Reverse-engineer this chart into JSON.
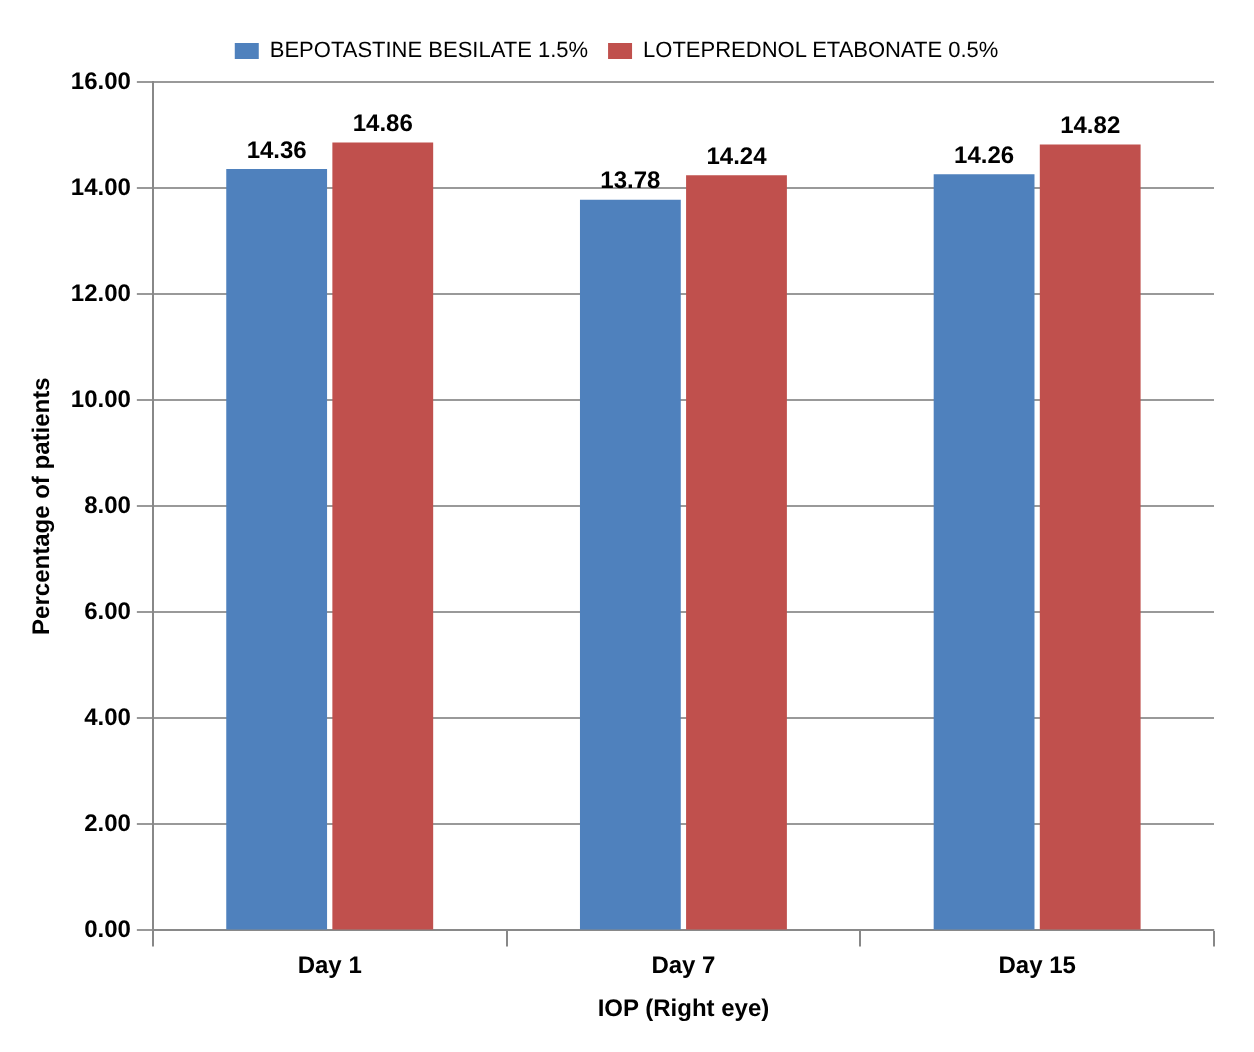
{
  "chart_data": {
    "type": "bar",
    "xlabel": "IOP (Right eye)",
    "ylabel": "Percentage of patients",
    "categories": [
      "Day 1",
      "Day 7",
      "Day 15"
    ],
    "series": [
      {
        "name": "BEPOTASTINE BESILATE 1.5%",
        "color": "#4f81bd",
        "values": [
          14.36,
          13.78,
          14.26
        ]
      },
      {
        "name": "LOTEPREDNOL ETABONATE 0.5%",
        "color": "#c0504d",
        "values": [
          14.86,
          14.24,
          14.82
        ]
      }
    ],
    "ylim": [
      0,
      16
    ],
    "yticks": [
      {
        "value": 0,
        "label": "0.00"
      },
      {
        "value": 2,
        "label": "2.00"
      },
      {
        "value": 4,
        "label": "4.00"
      },
      {
        "value": 6,
        "label": "6.00"
      },
      {
        "value": 8,
        "label": "8.00"
      },
      {
        "value": 10,
        "label": "10.00"
      },
      {
        "value": 12,
        "label": "12.00"
      },
      {
        "value": 14,
        "label": "14.00"
      },
      {
        "value": 16,
        "label": "16.00"
      }
    ],
    "grid": "y",
    "legend": "top",
    "data_labels": true
  }
}
